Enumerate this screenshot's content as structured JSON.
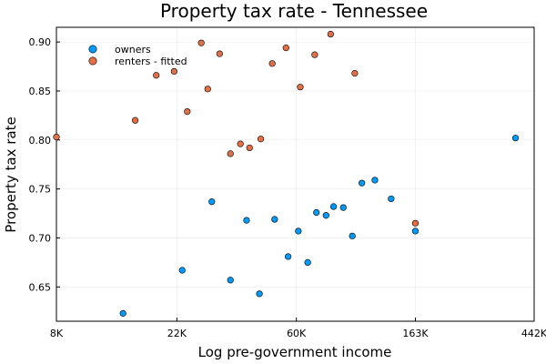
{
  "chart_data": {
    "type": "scatter",
    "title": "Property tax rate - Tennessee",
    "xlabel": "Log pre-government income",
    "ylabel": "Property tax rate",
    "x_scale": "log",
    "xlim": [
      8000,
      442000
    ],
    "ylim": [
      0.615,
      0.915
    ],
    "x_ticks": [
      {
        "value": 8000,
        "label": "8K"
      },
      {
        "value": 22000,
        "label": "22K"
      },
      {
        "value": 60000,
        "label": "60K"
      },
      {
        "value": 163000,
        "label": "163K"
      },
      {
        "value": 442000,
        "label": "442K"
      }
    ],
    "y_ticks": [
      {
        "value": 0.65,
        "label": "0.65"
      },
      {
        "value": 0.7,
        "label": "0.70"
      },
      {
        "value": 0.75,
        "label": "0.75"
      },
      {
        "value": 0.8,
        "label": "0.80"
      },
      {
        "value": 0.85,
        "label": "0.85"
      },
      {
        "value": 0.9,
        "label": "0.90"
      }
    ],
    "grid": true,
    "legend_position": "top-left",
    "series": [
      {
        "name": "owners",
        "color": "#009AFA",
        "points": [
          {
            "x": 14000,
            "y": 0.623
          },
          {
            "x": 23000,
            "y": 0.667
          },
          {
            "x": 29500,
            "y": 0.737
          },
          {
            "x": 34500,
            "y": 0.657
          },
          {
            "x": 39500,
            "y": 0.718
          },
          {
            "x": 44000,
            "y": 0.643
          },
          {
            "x": 50000,
            "y": 0.719
          },
          {
            "x": 56000,
            "y": 0.681
          },
          {
            "x": 61000,
            "y": 0.707
          },
          {
            "x": 66000,
            "y": 0.675
          },
          {
            "x": 71000,
            "y": 0.726
          },
          {
            "x": 77000,
            "y": 0.723
          },
          {
            "x": 82000,
            "y": 0.732
          },
          {
            "x": 89000,
            "y": 0.731
          },
          {
            "x": 96000,
            "y": 0.702
          },
          {
            "x": 104000,
            "y": 0.756
          },
          {
            "x": 116000,
            "y": 0.759
          },
          {
            "x": 133000,
            "y": 0.74
          },
          {
            "x": 163000,
            "y": 0.707
          },
          {
            "x": 378000,
            "y": 0.802
          }
        ]
      },
      {
        "name": "renters - fitted",
        "color": "#E26F46",
        "points": [
          {
            "x": 8000,
            "y": 0.803
          },
          {
            "x": 15500,
            "y": 0.82
          },
          {
            "x": 18500,
            "y": 0.866
          },
          {
            "x": 21500,
            "y": 0.87
          },
          {
            "x": 24000,
            "y": 0.829
          },
          {
            "x": 27000,
            "y": 0.899
          },
          {
            "x": 28500,
            "y": 0.852
          },
          {
            "x": 31500,
            "y": 0.888
          },
          {
            "x": 34500,
            "y": 0.786
          },
          {
            "x": 37500,
            "y": 0.796
          },
          {
            "x": 40500,
            "y": 0.792
          },
          {
            "x": 44500,
            "y": 0.801
          },
          {
            "x": 49000,
            "y": 0.878
          },
          {
            "x": 55000,
            "y": 0.894
          },
          {
            "x": 62000,
            "y": 0.854
          },
          {
            "x": 70000,
            "y": 0.887
          },
          {
            "x": 80000,
            "y": 0.908
          },
          {
            "x": 98000,
            "y": 0.868
          },
          {
            "x": 163000,
            "y": 0.715
          }
        ]
      }
    ]
  }
}
